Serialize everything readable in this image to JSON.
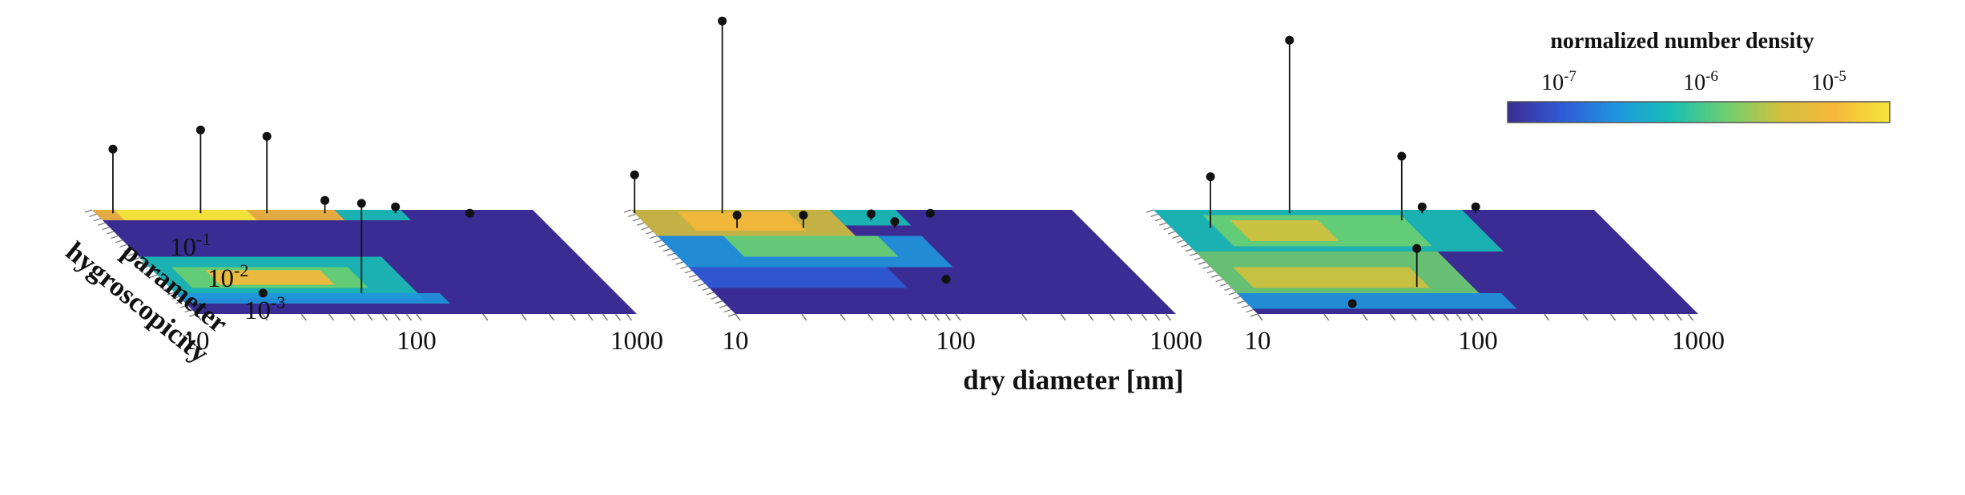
{
  "chart_data": {
    "type": "heatmap",
    "description_free": true,
    "xlabel": "dry diameter [nm]",
    "ylabel_lines": [
      "hygroscopicity",
      "parameter"
    ],
    "x_tick_labels": [
      "10",
      "100",
      "1000"
    ],
    "x_scale": "log",
    "xlim": [
      10,
      1000
    ],
    "y_scale": "log",
    "y_ticks": [
      {
        "base": "10",
        "exp": "-1"
      },
      {
        "base": "10",
        "exp": "-2"
      },
      {
        "base": "10",
        "exp": "-3"
      }
    ],
    "colorbar": {
      "title": "normalized number density",
      "scale": "log",
      "ticks": [
        {
          "base": "10",
          "exp": "-7"
        },
        {
          "base": "10",
          "exp": "-6"
        },
        {
          "base": "10",
          "exp": "-5"
        }
      ],
      "colormap": [
        "#3b2c93",
        "#2f5bd6",
        "#1f96de",
        "#18bfb6",
        "#6ccf6f",
        "#d3c03d",
        "#f6b83a",
        "#f5e53a"
      ]
    },
    "panels": [
      {
        "stems": [
          {
            "x": 12,
            "y": 0.8,
            "height": 0.5
          },
          {
            "x": 30,
            "y": 0.8,
            "height": 0.65
          },
          {
            "x": 60,
            "y": 0.8,
            "height": 0.6
          },
          {
            "x": 110,
            "y": 0.8,
            "height": 0.1
          },
          {
            "x": 230,
            "y": 0.8,
            "height": 0.05
          },
          {
            "x": 500,
            "y": 0.8,
            "height": 0.0
          },
          {
            "x": 25,
            "y": 0.004,
            "height": 0.0
          },
          {
            "x": 70,
            "y": 0.004,
            "height": 0.7
          }
        ]
      },
      {
        "stems": [
          {
            "x": 10,
            "y": 0.8,
            "height": 0.3
          },
          {
            "x": 25,
            "y": 0.8,
            "height": 1.5
          },
          {
            "x": 25,
            "y": 0.3,
            "height": 0.1
          },
          {
            "x": 50,
            "y": 0.3,
            "height": 0.1
          },
          {
            "x": 110,
            "y": 0.5,
            "height": 0.05
          },
          {
            "x": 130,
            "y": 0.3,
            "height": 0.05
          },
          {
            "x": 220,
            "y": 0.8,
            "height": 0.0
          },
          {
            "x": 130,
            "y": 0.01,
            "height": 0.0
          }
        ]
      },
      {
        "stems": [
          {
            "x": 15,
            "y": 0.3,
            "height": 0.4
          },
          {
            "x": 40,
            "y": 0.8,
            "height": 1.35
          },
          {
            "x": 120,
            "y": 0.5,
            "height": 0.5
          },
          {
            "x": 160,
            "y": 0.8,
            "height": 0.05
          },
          {
            "x": 280,
            "y": 0.8,
            "height": 0.05
          },
          {
            "x": 70,
            "y": 0.006,
            "height": 0.3
          },
          {
            "x": 30,
            "y": 0.002,
            "height": 0.0
          }
        ]
      }
    ]
  }
}
